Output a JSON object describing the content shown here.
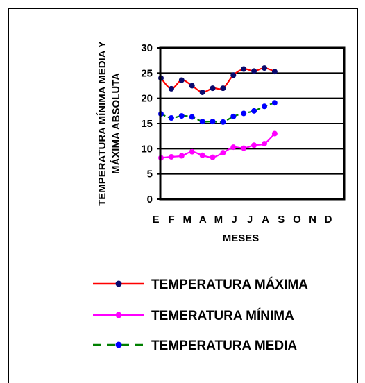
{
  "chart_data": {
    "type": "line",
    "categories": [
      "E",
      "F",
      "M",
      "A",
      "M",
      "J",
      "J",
      "A",
      "S",
      "O",
      "N",
      "D"
    ],
    "xlabel": "MESES",
    "ylabel": [
      "TEMPERATURA MÍNIMA MEDIA Y",
      "MÁXIMA ABSOLUTA"
    ],
    "ylim": [
      0,
      30
    ],
    "yticks": [
      "0",
      "5",
      "10",
      "15",
      "20",
      "25",
      "30"
    ],
    "grid": "horizontal",
    "legend_position": "bottom",
    "series": [
      {
        "name": "TEMPERATURA MÁXIMA",
        "color": "#ff0000",
        "marker_color": "#0a0a6e",
        "dash": "solid",
        "values": [
          24.0,
          21.9,
          23.6,
          22.5,
          21.2,
          22.0,
          22.0,
          24.6,
          25.8,
          25.4,
          26.0,
          25.3
        ]
      },
      {
        "name": "TEMERATURA MÍNIMA",
        "color": "#ff00ff",
        "marker_color": "#ff00ff",
        "dash": "solid",
        "values": [
          8.2,
          8.4,
          8.6,
          9.4,
          8.7,
          8.3,
          9.2,
          10.3,
          10.1,
          10.7,
          11.0,
          13.0
        ]
      },
      {
        "name": "TEMPERATURA MEDIA",
        "color": "#008000",
        "marker_color": "#0000ff",
        "dash": "dashed",
        "values": [
          16.9,
          16.1,
          16.5,
          16.3,
          15.4,
          15.4,
          15.3,
          16.4,
          17.0,
          17.5,
          18.4,
          19.1
        ]
      }
    ]
  }
}
